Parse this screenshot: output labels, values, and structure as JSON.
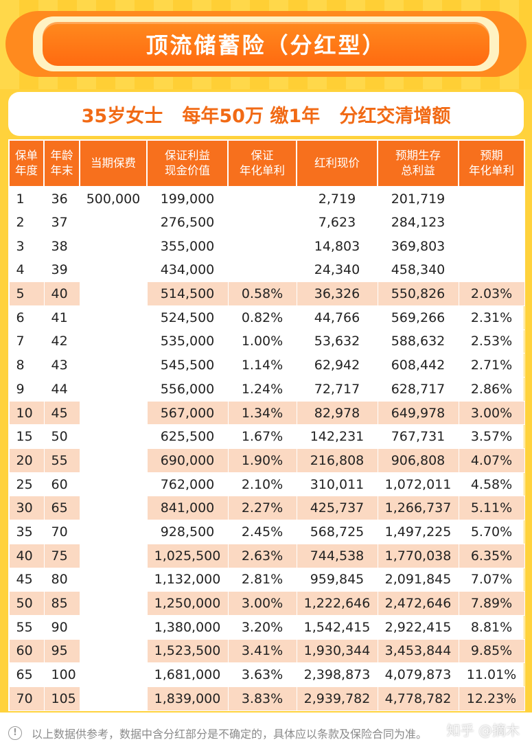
{
  "title": "顶流储蓄险（分红型）",
  "subtitle": "35岁女士   每年50万 缴1年   分红交清增额",
  "headers": [
    [
      "保单",
      "年度"
    ],
    [
      "年龄",
      "年末"
    ],
    [
      "当期保费"
    ],
    [
      "保证利益",
      "现金价值"
    ],
    [
      "保证",
      "年化单利"
    ],
    [
      "红利现价"
    ],
    [
      "预期生存",
      "总利益"
    ],
    [
      "预期",
      "年化单利"
    ]
  ],
  "premium": "500,000",
  "rows": [
    {
      "year": "1",
      "age": "36",
      "cash": "199,000",
      "simple": "",
      "bonus": "2,719",
      "total": "201,719",
      "exp": "",
      "hl": false
    },
    {
      "year": "2",
      "age": "37",
      "cash": "276,500",
      "simple": "",
      "bonus": "7,623",
      "total": "284,123",
      "exp": "",
      "hl": false
    },
    {
      "year": "3",
      "age": "38",
      "cash": "355,000",
      "simple": "",
      "bonus": "14,803",
      "total": "369,803",
      "exp": "",
      "hl": false
    },
    {
      "year": "4",
      "age": "39",
      "cash": "434,000",
      "simple": "",
      "bonus": "24,340",
      "total": "458,340",
      "exp": "",
      "hl": false
    },
    {
      "year": "5",
      "age": "40",
      "cash": "514,500",
      "simple": "0.58%",
      "bonus": "36,326",
      "total": "550,826",
      "exp": "2.03%",
      "hl": true
    },
    {
      "year": "6",
      "age": "41",
      "cash": "524,500",
      "simple": "0.82%",
      "bonus": "44,766",
      "total": "569,266",
      "exp": "2.31%",
      "hl": false
    },
    {
      "year": "7",
      "age": "42",
      "cash": "535,000",
      "simple": "1.00%",
      "bonus": "53,632",
      "total": "588,632",
      "exp": "2.53%",
      "hl": false
    },
    {
      "year": "8",
      "age": "43",
      "cash": "545,500",
      "simple": "1.14%",
      "bonus": "62,942",
      "total": "608,442",
      "exp": "2.71%",
      "hl": false
    },
    {
      "year": "9",
      "age": "44",
      "cash": "556,000",
      "simple": "1.24%",
      "bonus": "72,717",
      "total": "628,717",
      "exp": "2.86%",
      "hl": false
    },
    {
      "year": "10",
      "age": "45",
      "cash": "567,000",
      "simple": "1.34%",
      "bonus": "82,978",
      "total": "649,978",
      "exp": "3.00%",
      "hl": true
    },
    {
      "year": "15",
      "age": "50",
      "cash": "625,500",
      "simple": "1.67%",
      "bonus": "142,231",
      "total": "767,731",
      "exp": "3.57%",
      "hl": false
    },
    {
      "year": "20",
      "age": "55",
      "cash": "690,000",
      "simple": "1.90%",
      "bonus": "216,808",
      "total": "906,808",
      "exp": "4.07%",
      "hl": true
    },
    {
      "year": "25",
      "age": "60",
      "cash": "762,000",
      "simple": "2.10%",
      "bonus": "310,011",
      "total": "1,072,011",
      "exp": "4.58%",
      "hl": false
    },
    {
      "year": "30",
      "age": "65",
      "cash": "841,000",
      "simple": "2.27%",
      "bonus": "425,737",
      "total": "1,266,737",
      "exp": "5.11%",
      "hl": true
    },
    {
      "year": "35",
      "age": "70",
      "cash": "928,500",
      "simple": "2.45%",
      "bonus": "568,725",
      "total": "1,497,225",
      "exp": "5.70%",
      "hl": false
    },
    {
      "year": "40",
      "age": "75",
      "cash": "1,025,500",
      "simple": "2.63%",
      "bonus": "744,538",
      "total": "1,770,038",
      "exp": "6.35%",
      "hl": true
    },
    {
      "year": "45",
      "age": "80",
      "cash": "1,132,000",
      "simple": "2.81%",
      "bonus": "959,845",
      "total": "2,091,845",
      "exp": "7.07%",
      "hl": false
    },
    {
      "year": "50",
      "age": "85",
      "cash": "1,250,000",
      "simple": "3.00%",
      "bonus": "1,222,646",
      "total": "2,472,646",
      "exp": "7.89%",
      "hl": true
    },
    {
      "year": "55",
      "age": "90",
      "cash": "1,380,000",
      "simple": "3.20%",
      "bonus": "1,542,415",
      "total": "2,922,415",
      "exp": "8.81%",
      "hl": false
    },
    {
      "year": "60",
      "age": "95",
      "cash": "1,523,500",
      "simple": "3.41%",
      "bonus": "1,930,344",
      "total": "3,453,844",
      "exp": "9.85%",
      "hl": true
    },
    {
      "year": "65",
      "age": "100",
      "cash": "1,681,000",
      "simple": "3.63%",
      "bonus": "2,398,873",
      "total": "4,079,873",
      "exp": "11.01%",
      "hl": false
    },
    {
      "year": "70",
      "age": "105",
      "cash": "1,839,000",
      "simple": "3.83%",
      "bonus": "2,939,782",
      "total": "4,778,782",
      "exp": "12.23%",
      "hl": true
    }
  ],
  "footer_note": "以上数据供参考，数据中含分红部分是不确定的，具体应以条款及保险合同为准。",
  "watermark": "知乎 @摘木",
  "colors": {
    "header_orange": "#f7701d",
    "highlight_row": "#fbd9c2",
    "subtitle_orange": "#f16a15",
    "background_yellow": "#ffd23c"
  },
  "icons": {
    "footer": "info-circle-icon"
  }
}
